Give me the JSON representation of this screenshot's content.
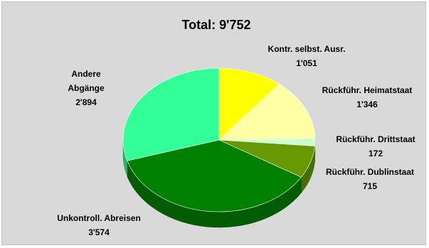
{
  "chart_data": {
    "type": "pie",
    "title": "Total: 9'752",
    "slices": [
      {
        "lines": [
          "Kontr. selbst. Ausr.",
          "1'051"
        ],
        "value": 1051,
        "color": "#ffff00"
      },
      {
        "lines": [
          "Rückführ. Heimatstaat",
          "1'346"
        ],
        "value": 1346,
        "color": "#ffffa6"
      },
      {
        "lines": [
          "Rückführ. Drittstaat",
          "172"
        ],
        "value": 172,
        "color": "#ccffcc"
      },
      {
        "lines": [
          "Rückführ. Dublinstaat",
          "715"
        ],
        "value": 715,
        "color": "#669900"
      },
      {
        "lines": [
          "Unkontroll. Abreisen",
          "3'574"
        ],
        "value": 3574,
        "color": "#008000"
      },
      {
        "lines": [
          "Andere",
          "Abgänge",
          "2'894"
        ],
        "value": 2894,
        "color": "#33ff99"
      }
    ]
  }
}
